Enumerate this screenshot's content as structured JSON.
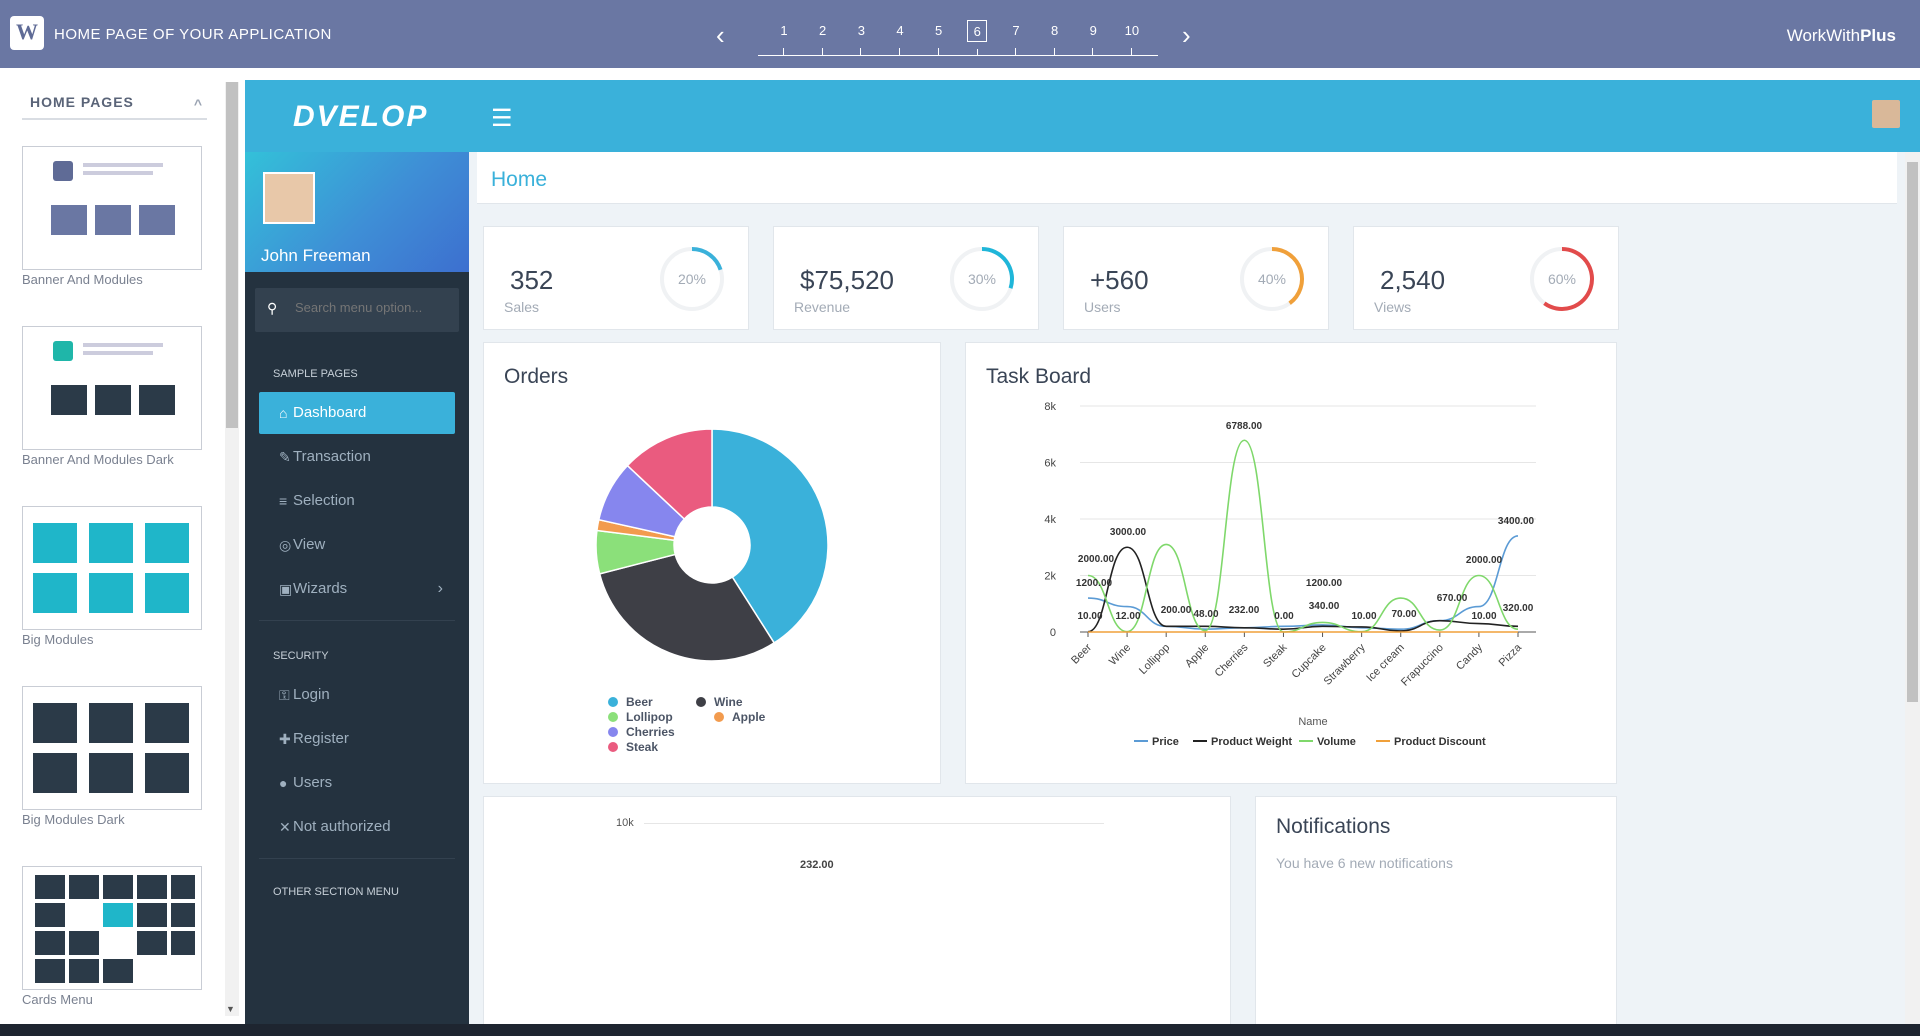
{
  "topbar": {
    "logo": "W",
    "title": "HOME PAGE OF YOUR APPLICATION",
    "pages": [
      "1",
      "2",
      "3",
      "4",
      "5",
      "6",
      "7",
      "8",
      "9",
      "10"
    ],
    "active_page": "6",
    "brand_prefix": "WorkWith",
    "brand_suffix": "Plus"
  },
  "thumbnails": {
    "heading": "HOME PAGES",
    "items": [
      {
        "label": "Banner And Modules"
      },
      {
        "label": "Banner And Modules Dark"
      },
      {
        "label": "Big Modules"
      },
      {
        "label": "Big Modules Dark"
      },
      {
        "label": "Cards Menu"
      }
    ]
  },
  "app": {
    "logo": "DVELOP",
    "user_name": "John Freeman",
    "search_placeholder": "Search menu option...",
    "sections": {
      "sample": "SAMPLE PAGES",
      "security": "SECURITY",
      "other": "OTHER SECTION MENU"
    },
    "menu": [
      {
        "label": "Dashboard",
        "icon": "home-icon",
        "active": true
      },
      {
        "label": "Transaction",
        "icon": "edit-icon"
      },
      {
        "label": "Selection",
        "icon": "list-icon"
      },
      {
        "label": "View",
        "icon": "eye-icon"
      },
      {
        "label": "Wizards",
        "icon": "briefcase-icon"
      }
    ],
    "security_menu": [
      {
        "label": "Login",
        "icon": "key-icon"
      },
      {
        "label": "Register",
        "icon": "user-plus-icon"
      },
      {
        "label": "Users",
        "icon": "user-icon"
      },
      {
        "label": "Not authorized",
        "icon": "close-icon"
      }
    ],
    "breadcrumb": "Home"
  },
  "kpis": [
    {
      "value": "352",
      "label": "Sales",
      "percent": 20,
      "percent_label": "20%",
      "color": "#3ab1da"
    },
    {
      "value": "$75,520",
      "label": "Revenue",
      "percent": 30,
      "percent_label": "30%",
      "color": "#1fb6d9"
    },
    {
      "value": "+560",
      "label": "Users",
      "percent": 40,
      "percent_label": "40%",
      "color": "#f0a03a"
    },
    {
      "value": "2,540",
      "label": "Views",
      "percent": 60,
      "percent_label": "60%",
      "color": "#e24b4b"
    }
  ],
  "orders": {
    "title": "Orders",
    "chart_data": {
      "type": "pie",
      "categories": [
        "Beer",
        "Wine",
        "Lollipop",
        "Apple",
        "Cherries",
        "Steak"
      ],
      "values": [
        41,
        30,
        6,
        1.5,
        8.5,
        13
      ],
      "colors": [
        "#3ab1da",
        "#3e3f46",
        "#8be07a",
        "#f29b4e",
        "#8686ee",
        "#ea5b7f"
      ]
    }
  },
  "taskboard": {
    "title": "Task Board",
    "chart_data": {
      "type": "line",
      "categories": [
        "Beer",
        "Wine",
        "Lollipop",
        "Apple",
        "Cherries",
        "Steak",
        "Cupcake",
        "Strawberry",
        "Ice cream",
        "Frapuccino",
        "Candy",
        "Pizza"
      ],
      "xlabel": "Name",
      "ylim": [
        0,
        8000
      ],
      "yticks": [
        "0",
        "2k",
        "4k",
        "6k",
        "8k"
      ],
      "series": [
        {
          "name": "Price",
          "color": "#5b9bd5",
          "values": [
            1200,
            900,
            200,
            100,
            150,
            200,
            250,
            150,
            100,
            400,
            900,
            3400
          ]
        },
        {
          "name": "Product Weight",
          "color": "#222222",
          "values": [
            10,
            3000,
            200,
            200,
            150,
            100,
            200,
            180,
            40,
            400,
            300,
            200
          ]
        },
        {
          "name": "Volume",
          "color": "#7fd86b",
          "values": [
            2000,
            12,
            3100,
            48,
            6788,
            0,
            340,
            10,
            1200,
            70,
            2000,
            100
          ]
        },
        {
          "name": "Product Discount",
          "color": "#f0a03a",
          "values": [
            0,
            0,
            0,
            0,
            0,
            0,
            0,
            0,
            0,
            0,
            0,
            0
          ]
        }
      ],
      "data_labels": [
        "2000.00",
        "1200.00",
        "10.00",
        "3000.00",
        "12.00",
        "200.00",
        "48.00",
        "6788.00",
        "232.00",
        "0.00",
        "1200.00",
        "340.00",
        "10.00",
        "670.00",
        "70.00",
        "2000.00",
        "10.00",
        "3400.00",
        "320.00"
      ]
    }
  },
  "bottom_chart": {
    "ytick_top": "10k",
    "label": "232.00"
  },
  "notifications": {
    "title": "Notifications",
    "subtitle": "You have 6 new notifications"
  }
}
